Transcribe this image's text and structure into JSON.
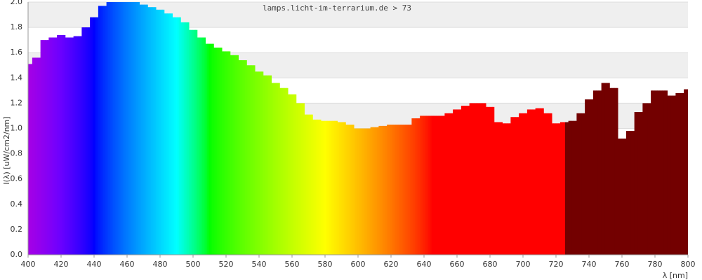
{
  "chart_data": {
    "type": "spectrum",
    "title": "lamps.licht-im-terrarium.de > 73",
    "x_label": "λ [nm]",
    "y_label": "I(λ) [uW/cm2/nm]",
    "x": [
      400,
      405,
      410,
      415,
      420,
      425,
      430,
      435,
      440,
      445,
      450,
      455,
      460,
      465,
      470,
      475,
      480,
      485,
      490,
      495,
      500,
      505,
      510,
      515,
      520,
      525,
      530,
      535,
      540,
      545,
      550,
      555,
      560,
      565,
      570,
      575,
      580,
      585,
      590,
      595,
      600,
      605,
      610,
      615,
      620,
      625,
      630,
      635,
      640,
      645,
      650,
      655,
      660,
      665,
      670,
      675,
      680,
      685,
      690,
      695,
      700,
      705,
      710,
      715,
      720,
      725,
      730,
      735,
      740,
      745,
      750,
      755,
      760,
      765,
      770,
      775,
      780,
      785,
      790,
      795,
      800
    ],
    "values": [
      1.51,
      1.56,
      1.7,
      1.72,
      1.74,
      1.72,
      1.73,
      1.8,
      1.88,
      1.97,
      2.0,
      2.0,
      2.0,
      2.0,
      1.98,
      1.96,
      1.94,
      1.91,
      1.88,
      1.84,
      1.78,
      1.72,
      1.67,
      1.64,
      1.61,
      1.58,
      1.54,
      1.5,
      1.45,
      1.42,
      1.36,
      1.32,
      1.27,
      1.2,
      1.11,
      1.07,
      1.06,
      1.06,
      1.05,
      1.03,
      1.0,
      1.0,
      1.01,
      1.02,
      1.03,
      1.03,
      1.03,
      1.08,
      1.1,
      1.1,
      1.1,
      1.12,
      1.15,
      1.18,
      1.2,
      1.2,
      1.17,
      1.05,
      1.04,
      1.09,
      1.12,
      1.15,
      1.16,
      1.12,
      1.04,
      1.05,
      1.06,
      1.12,
      1.23,
      1.3,
      1.36,
      1.32,
      0.92,
      0.98,
      1.13,
      1.2,
      1.3,
      1.3,
      1.26,
      1.28,
      1.31
    ],
    "xlim": [
      400,
      800
    ],
    "ylim": [
      0,
      2
    ],
    "xticks": [
      400,
      420,
      440,
      460,
      480,
      500,
      520,
      540,
      560,
      580,
      600,
      620,
      640,
      660,
      680,
      700,
      720,
      740,
      760,
      780,
      800
    ],
    "yticks": [
      {
        "value": 0,
        "label": "0.0"
      },
      0.2,
      0.4,
      0.6,
      0.8,
      {
        "value": 1,
        "label": "1.0"
      },
      1.2,
      1.4,
      1.6,
      1.8,
      {
        "value": 2,
        "label": "2.0"
      }
    ],
    "grid": true,
    "band_color": "#efefef",
    "grid_color": "#dddddd",
    "infrared_color": "#730000"
  }
}
